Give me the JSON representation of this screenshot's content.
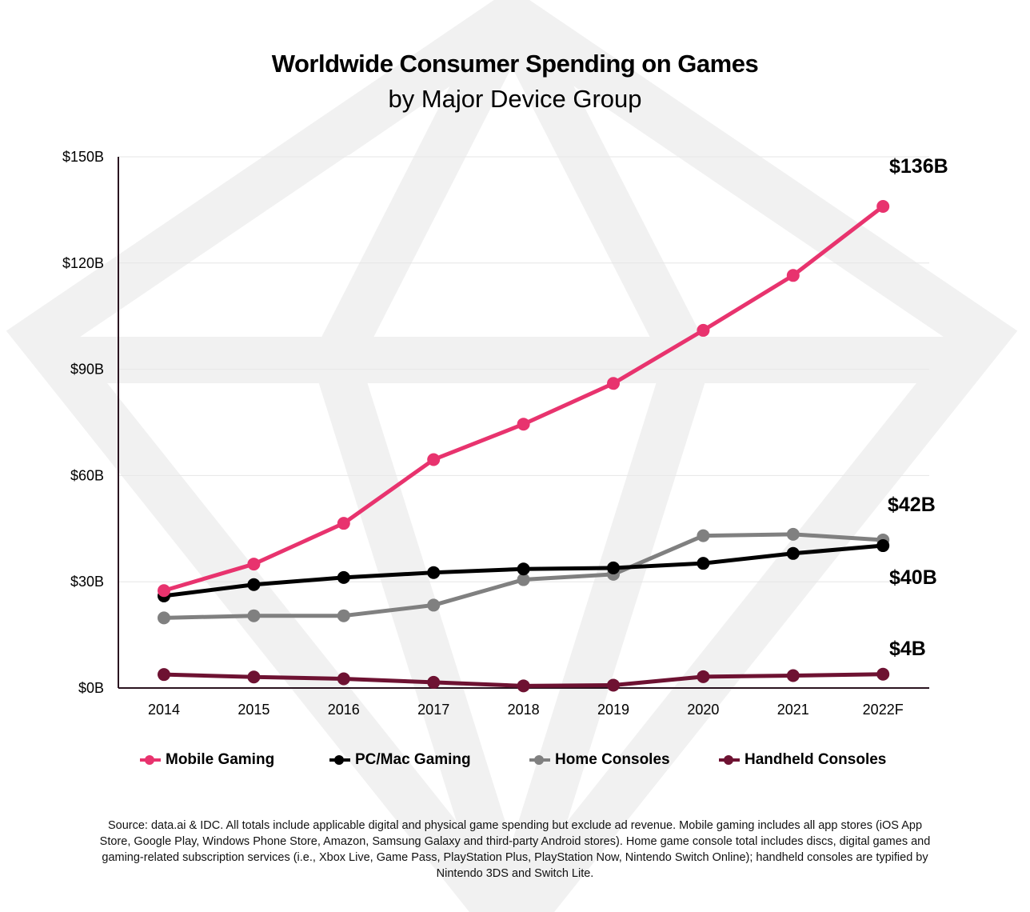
{
  "chart_data": {
    "type": "line",
    "title": "Worldwide Consumer Spending on Games",
    "subtitle": "by Major Device Group",
    "categories": [
      "2014",
      "2015",
      "2016",
      "2017",
      "2018",
      "2019",
      "2020",
      "2021",
      "2022F"
    ],
    "ylim": [
      0,
      150
    ],
    "y_ticks": [
      0,
      30,
      60,
      90,
      120,
      150
    ],
    "y_tick_labels": [
      "$0B",
      "$30B",
      "$60B",
      "$90B",
      "$120B",
      "$150B"
    ],
    "grid": true,
    "legend_position": "bottom",
    "series": [
      {
        "name": "Mobile Gaming",
        "color": "#e8336e",
        "values": [
          27.5,
          35,
          46.5,
          64.5,
          74.5,
          86,
          101,
          116.5,
          136
        ]
      },
      {
        "name": "PC/Mac Gaming",
        "color": "#000000",
        "values": [
          26,
          29.2,
          31.2,
          32.6,
          33.6,
          33.9,
          35.2,
          38,
          40.2
        ]
      },
      {
        "name": "Home Consoles",
        "color": "#808080",
        "values": [
          19.8,
          20.4,
          20.4,
          23.4,
          30.6,
          32.1,
          43,
          43.4,
          41.8
        ]
      },
      {
        "name": "Handheld Consoles",
        "color": "#6e1232",
        "values": [
          3.8,
          3.1,
          2.6,
          1.6,
          0.6,
          0.8,
          3.2,
          3.5,
          3.9
        ]
      }
    ],
    "annotations": [
      "$136B",
      "$42B",
      "$40B",
      "$4B"
    ]
  },
  "source_text": "Source: data.ai & IDC. All totals include applicable digital and physical game spending but exclude ad revenue. Mobile gaming includes all app stores (iOS App Store, Google Play, Windows Phone Store, Amazon, Samsung Galaxy and third-party Android stores). Home game console total includes discs, digital games and gaming-related subscription services (i.e., Xbox Live, Game Pass, PlayStation Plus, PlayStation Now, Nintendo Switch Online); handheld consoles are typified by Nintendo 3DS and Switch Lite."
}
